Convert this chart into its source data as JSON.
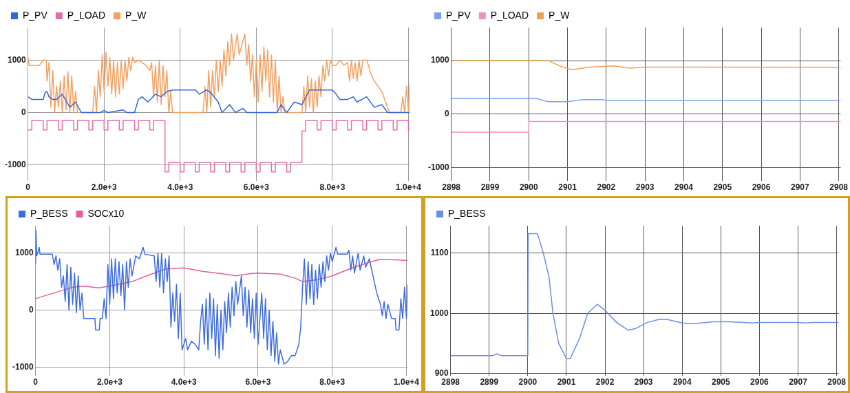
{
  "chart_data": [
    {
      "type": "line",
      "xlim": [
        0,
        10030
      ],
      "ylim": [
        -1300,
        1620
      ],
      "xticks": [
        0,
        {
          "value": 2000,
          "label": "2.0e+3"
        },
        {
          "value": 4000,
          "label": "4.0e+3"
        },
        {
          "value": 6000,
          "label": "6.0e+3"
        },
        {
          "value": 8000,
          "label": "8.0e+3"
        },
        {
          "value": 10000,
          "label": "1.0e+4"
        }
      ],
      "yticks": [
        -1000,
        0,
        1000
      ],
      "grid": true,
      "legend": "top left",
      "marker": "none",
      "series": [
        {
          "name": "P_PV",
          "color": "#3366dd",
          "x": [
            0,
            100,
            400,
            450,
            500,
            550,
            650,
            750,
            900,
            1100,
            1250,
            1400,
            1900,
            2000,
            2100,
            2500,
            2600,
            2800,
            2900,
            3000,
            3150,
            3350,
            3500,
            3650,
            3800,
            4400,
            4500,
            4700,
            4800,
            5000,
            5100,
            5300,
            5450,
            5650,
            5750,
            6550,
            6650,
            6800,
            7000,
            7200,
            7400,
            8000,
            8100,
            8200,
            8400,
            8550,
            8650,
            8900,
            9100,
            9300,
            9450,
            10030
          ],
          "values": [
            300,
            250,
            250,
            380,
            400,
            300,
            250,
            250,
            350,
            100,
            200,
            0,
            0,
            40,
            0,
            50,
            0,
            0,
            250,
            300,
            200,
            350,
            300,
            400,
            430,
            430,
            350,
            430,
            380,
            200,
            0,
            150,
            0,
            80,
            0,
            0,
            150,
            0,
            200,
            150,
            430,
            430,
            350,
            250,
            250,
            300,
            200,
            300,
            100,
            150,
            0,
            0
          ]
        },
        {
          "name": "P_LOAD",
          "type": "step",
          "color": "#e070a8",
          "x": [
            0,
            100,
            400,
            500,
            800,
            900,
            1200,
            1300,
            1600,
            1700,
            2000,
            2100,
            2400,
            2500,
            2800,
            2900,
            3200,
            3300,
            3600,
            3700,
            4000,
            4100,
            4400,
            4500,
            4800,
            4900,
            5200,
            5300,
            5600,
            5700,
            6000,
            6100,
            6400,
            6500,
            6800,
            6900,
            7200,
            7300,
            7600,
            7700,
            8000,
            8100,
            8400,
            8500,
            8800,
            8900,
            9200,
            9300,
            9600,
            9700,
            10000,
            10030
          ],
          "values": [
            -330,
            -150,
            -330,
            -150,
            -330,
            -150,
            -330,
            -150,
            -330,
            -150,
            -330,
            -150,
            -330,
            -150,
            -330,
            -150,
            -330,
            -150,
            -1130,
            -950,
            -1130,
            -950,
            -1130,
            -950,
            -1130,
            -950,
            -1130,
            -950,
            -1130,
            -950,
            -1130,
            -950,
            -1130,
            -950,
            -1130,
            -950,
            -350,
            -150,
            -330,
            -150,
            -330,
            -150,
            -330,
            -150,
            -330,
            -150,
            -330,
            -150,
            -330,
            -150,
            -330,
            -330
          ]
        },
        {
          "name": "P_W",
          "color": "#f5a060",
          "x": [
            0,
            30,
            300,
            400,
            480,
            500,
            550,
            600,
            650,
            700,
            750,
            800,
            850,
            900,
            950,
            1000,
            1050,
            1100,
            1150,
            1200,
            1250,
            1300,
            1400,
            1700,
            1750,
            1800,
            1850,
            1900,
            1950,
            2000,
            2050,
            2100,
            2150,
            2200,
            2250,
            2300,
            2350,
            2400,
            2450,
            2500,
            2550,
            2600,
            2650,
            2700,
            2750,
            2800,
            2900,
            3000,
            3100,
            3200,
            3250,
            3300,
            3350,
            3400,
            3450,
            3500,
            3550,
            3600,
            3650,
            3700,
            3750,
            3800,
            4600,
            4650,
            4700,
            4750,
            4800,
            4850,
            4900,
            4950,
            5000,
            5050,
            5100,
            5150,
            5200,
            5250,
            5300,
            5350,
            5400,
            5500,
            5550,
            5700,
            5750,
            5800,
            5850,
            5900,
            5950,
            6000,
            6050,
            6100,
            6150,
            6200,
            6250,
            6300,
            6350,
            6400,
            6450,
            6500,
            6550,
            6600,
            6650,
            6700,
            6750,
            7200,
            7250,
            7300,
            7350,
            7400,
            7450,
            7500,
            7550,
            7600,
            7650,
            7700,
            7750,
            7800,
            7850,
            7900,
            7950,
            8000,
            8100,
            8200,
            8300,
            8400,
            8450,
            8500,
            8550,
            8600,
            8650,
            8700,
            8750,
            8800,
            8900,
            8950,
            9000,
            9100,
            9200,
            9300,
            9400,
            9500,
            9800,
            9850,
            9900,
            9950,
            10000,
            10030
          ],
          "values": [
            1050,
            900,
            900,
            1000,
            1000,
            600,
            950,
            100,
            800,
            0,
            500,
            100,
            600,
            0,
            700,
            50,
            780,
            0,
            700,
            0,
            400,
            0,
            0,
            0,
            500,
            0,
            800,
            300,
            1100,
            400,
            1150,
            500,
            1050,
            350,
            1000,
            300,
            950,
            350,
            1000,
            450,
            1000,
            600,
            1050,
            800,
            1050,
            950,
            1000,
            950,
            900,
            800,
            950,
            300,
            900,
            200,
            1000,
            150,
            900,
            300,
            800,
            0,
            400,
            0,
            0,
            500,
            0,
            800,
            100,
            800,
            300,
            1000,
            400,
            1000,
            500,
            1200,
            700,
            1350,
            900,
            1500,
            1000,
            1500,
            1100,
            1500,
            900,
            1300,
            600,
            1100,
            300,
            1000,
            200,
            1100,
            400,
            1250,
            600,
            1200,
            300,
            1100,
            200,
            1000,
            0,
            700,
            0,
            300,
            0,
            0,
            500,
            0,
            700,
            100,
            650,
            0,
            600,
            100,
            700,
            300,
            900,
            600,
            1000,
            700,
            1000,
            900,
            900,
            1000,
            900,
            950,
            600,
            1000,
            650,
            950,
            600,
            1000,
            700,
            1000,
            1000,
            900,
            750,
            600,
            500,
            400,
            200,
            0,
            0,
            300,
            0,
            500,
            0,
            550
          ]
        }
      ]
    },
    {
      "type": "line",
      "xlim": [
        2898,
        2908.05
      ],
      "ylim": [
        -1250,
        1620
      ],
      "xticks": [
        2898,
        2899,
        2900,
        2901,
        2902,
        2903,
        2904,
        2905,
        2906,
        2907,
        2908
      ],
      "yticks": [
        -1000,
        0,
        1000
      ],
      "grid": true,
      "legend": "top left",
      "marker": "none",
      "series": [
        {
          "name": "P_PV",
          "color": "#7fa0f0",
          "x": [
            2898,
            2900.2,
            2900.5,
            2901,
            2901.4,
            2901.9,
            2902,
            2908.05
          ],
          "values": [
            290,
            290,
            230,
            230,
            270,
            270,
            255,
            255
          ]
        },
        {
          "name": "P_LOAD",
          "type": "step",
          "color": "#f090c0",
          "x": [
            2898,
            2900,
            2908.05
          ],
          "values": [
            -340,
            -140,
            -140
          ]
        },
        {
          "name": "P_W",
          "color": "#f0a050",
          "x": [
            2898,
            2900.5,
            2900.8,
            2901.1,
            2901.6,
            2902.2,
            2902.6,
            2903,
            2908.05
          ],
          "values": [
            1000,
            1000,
            900,
            830,
            880,
            900,
            860,
            880,
            875
          ]
        }
      ]
    },
    {
      "type": "line",
      "xlim": [
        0,
        10030
      ],
      "ylim": [
        -1150,
        1480
      ],
      "xticks": [
        0,
        {
          "value": 2000,
          "label": "2.0e+3"
        },
        {
          "value": 4000,
          "label": "4.0e+3"
        },
        {
          "value": 6000,
          "label": "6.0e+3"
        },
        {
          "value": 8000,
          "label": "8.0e+3"
        },
        {
          "value": 10000,
          "label": "1.0e+4"
        }
      ],
      "yticks": [
        -1000,
        0,
        1000
      ],
      "grid": true,
      "legend": "top left",
      "marker": "none",
      "series": [
        {
          "name": "P_BESS",
          "color": "#3d6be0",
          "x": [
            0,
            10,
            30,
            100,
            120,
            450,
            500,
            550,
            600,
            650,
            700,
            750,
            800,
            850,
            900,
            950,
            1000,
            1050,
            1100,
            1150,
            1200,
            1250,
            1300,
            1400,
            1600,
            1620,
            1720,
            1740,
            1800,
            1850,
            1900,
            1950,
            2000,
            2050,
            2100,
            2150,
            2200,
            2250,
            2300,
            2350,
            2400,
            2450,
            2500,
            2550,
            2600,
            2700,
            2800,
            2900,
            2950,
            3200,
            3250,
            3300,
            3350,
            3400,
            3450,
            3500,
            3550,
            3600,
            3650,
            3700,
            3750,
            3800,
            3850,
            3900,
            3950,
            4050,
            4100,
            4200,
            4300,
            4400,
            4450,
            4500,
            4550,
            4600,
            4650,
            4700,
            4750,
            4800,
            4850,
            4900,
            4950,
            5000,
            5050,
            5100,
            5150,
            5200,
            5250,
            5300,
            5350,
            5400,
            5450,
            5550,
            5600,
            5650,
            5700,
            5750,
            5800,
            5850,
            5900,
            5950,
            6000,
            6100,
            6150,
            6200,
            6250,
            6300,
            6350,
            6400,
            6450,
            6500,
            6550,
            6600,
            6700,
            6800,
            6900,
            7000,
            7100,
            7150,
            7200,
            7250,
            7300,
            7350,
            7400,
            7450,
            7500,
            7550,
            7600,
            7650,
            7700,
            7750,
            7800,
            7850,
            7900,
            7950,
            8000,
            8100,
            8150,
            8400,
            8450,
            8500,
            8550,
            8600,
            8700,
            8750,
            8850,
            8900,
            9000,
            9100,
            9200,
            9300,
            9350,
            9400,
            9450,
            9500,
            9600,
            9700,
            9720,
            9800,
            9820,
            9850,
            9900,
            9950,
            10000,
            10030
          ],
          "values": [
            800,
            1400,
            950,
            1100,
            980,
            980,
            800,
            950,
            700,
            900,
            400,
            600,
            150,
            800,
            0,
            750,
            100,
            650,
            -50,
            600,
            0,
            300,
            -150,
            -150,
            -150,
            -350,
            -350,
            -150,
            -150,
            200,
            -150,
            800,
            100,
            900,
            200,
            900,
            300,
            850,
            250,
            800,
            0,
            850,
            400,
            900,
            600,
            950,
            900,
            1100,
            980,
            950,
            500,
            1000,
            400,
            1000,
            300,
            900,
            500,
            950,
            -300,
            300,
            -200,
            450,
            -500,
            300,
            -700,
            -500,
            -700,
            -550,
            -600,
            -700,
            -200,
            100,
            -600,
            200,
            -700,
            300,
            -500,
            200,
            -800,
            100,
            -850,
            0,
            -700,
            150,
            -400,
            300,
            -300,
            400,
            -100,
            500,
            100,
            600,
            -100,
            400,
            -300,
            350,
            -400,
            200,
            -500,
            300,
            -600,
            300,
            -500,
            200,
            -700,
            0,
            -800,
            -200,
            -900,
            -400,
            -950,
            -700,
            -950,
            -900,
            -800,
            -800,
            -600,
            -300,
            400,
            900,
            100,
            850,
            200,
            800,
            100,
            700,
            200,
            800,
            400,
            850,
            500,
            950,
            700,
            1000,
            850,
            1100,
            980,
            980,
            1050,
            700,
            950,
            650,
            1000,
            700,
            950,
            750,
            900,
            600,
            300,
            100,
            -100,
            150,
            -150,
            100,
            -150,
            -150,
            -350,
            -350,
            -150,
            200,
            -150,
            400,
            -150,
            450
          ]
        },
        {
          "name": "SOCx10",
          "color": "#e0609a",
          "x": [
            0,
            1000,
            1300,
            1700,
            2000,
            2600,
            3000,
            3500,
            4000,
            4500,
            5000,
            5400,
            5800,
            6000,
            6600,
            7000,
            7200,
            7600,
            8000,
            8500,
            9000,
            9300,
            9800,
            10030
          ],
          "values": [
            200,
            400,
            420,
            390,
            420,
            500,
            600,
            720,
            740,
            680,
            640,
            600,
            640,
            650,
            630,
            560,
            500,
            530,
            600,
            730,
            840,
            890,
            880,
            870
          ]
        }
      ]
    },
    {
      "type": "line",
      "xlim": [
        2898,
        2908.05
      ],
      "ylim": [
        897,
        1145
      ],
      "xticks": [
        2898,
        2899,
        2900,
        2901,
        2902,
        2903,
        2904,
        2905,
        2906,
        2907,
        2908
      ],
      "yticks": [
        900,
        1000,
        1100
      ],
      "grid": true,
      "legend": "top left",
      "marker": "none",
      "series": [
        {
          "name": "P_BESS",
          "color": "#6b8fe6",
          "x": [
            2898,
            2899.1,
            2899.2,
            2899.3,
            2900,
            2900.01,
            2900.25,
            2900.4,
            2900.55,
            2900.65,
            2900.8,
            2901,
            2901.1,
            2901.35,
            2901.55,
            2901.8,
            2902,
            2902.3,
            2902.6,
            2902.8,
            2903.1,
            2903.4,
            2903.6,
            2904,
            2904.3,
            2904.8,
            2905.2,
            2905.6,
            2905.8,
            2906,
            2907,
            2907.2,
            2907.4,
            2908.05
          ],
          "values": [
            930,
            930,
            933,
            930,
            930,
            1132,
            1132,
            1100,
            1060,
            1000,
            950,
            925,
            925,
            960,
            1000,
            1015,
            1005,
            985,
            972,
            975,
            985,
            990,
            990,
            984,
            983,
            986,
            986,
            985,
            984,
            985,
            985,
            984,
            985,
            985
          ]
        }
      ]
    }
  ]
}
